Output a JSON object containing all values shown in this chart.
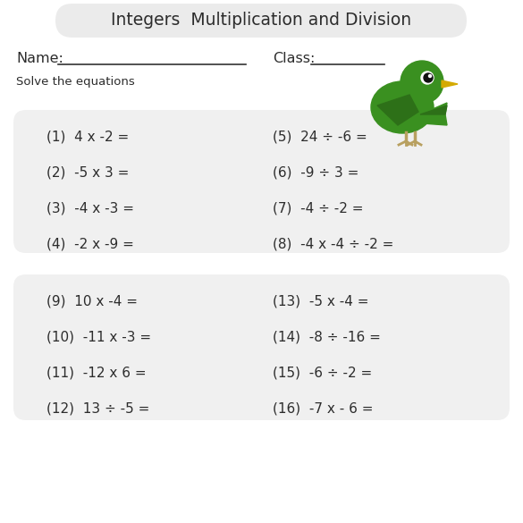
{
  "title": "Integers  Multiplication and Division",
  "background_color": "#ffffff",
  "title_box_color": "#ebebeb",
  "section_box_color": "#f0f0f0",
  "text_color": "#2c2c2c",
  "name_label": "Name:",
  "class_label": "Class:",
  "solve_text": "Solve the equations",
  "section1_problems_left": [
    "(1)  4 x -2 =",
    "(2)  -5 x 3 =",
    "(3)  -4 x -3 =",
    "(4)  -2 x -9 ="
  ],
  "section1_problems_right": [
    "(5)  24 ÷ -6 =",
    "(6)  -9 ÷ 3 =",
    "(7)  -4 ÷ -2 =",
    "(8)  -4 x -4 ÷ -2 ="
  ],
  "section2_problems_left": [
    "(9)  10 x -4 =",
    "(10)  -11 x -3 =",
    "(11)  -12 x 6 =",
    "(12)  13 ÷ -5 ="
  ],
  "section2_problems_right": [
    "(13)  -5 x -4 =",
    "(14)  -8 ÷ -16 =",
    "(15)  -6 ÷ -2 =",
    "(16)  -7 x - 6 ="
  ],
  "bird_color": "#3a9020",
  "bird_dark": "#2d7018",
  "beak_color": "#d4aa00",
  "leg_color": "#b8a060"
}
